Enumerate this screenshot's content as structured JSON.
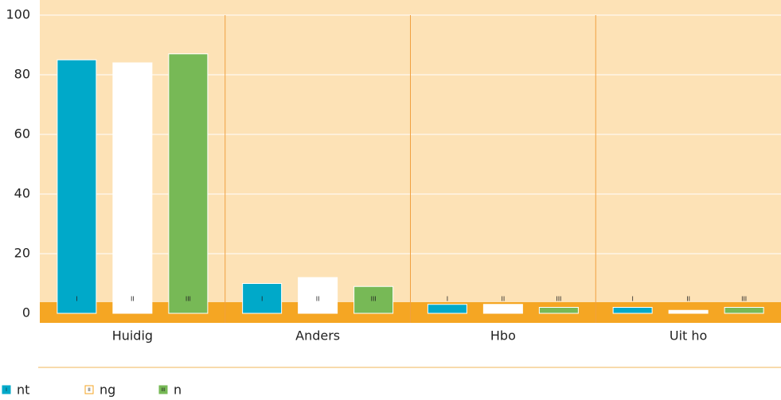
{
  "chart_data": {
    "type": "bar",
    "categories": [
      "Huidig",
      "Anders",
      "Hbo",
      "Uit ho"
    ],
    "series": [
      {
        "name": "nt",
        "marker": "I",
        "color": "#00a9c9",
        "values": [
          85,
          10,
          3,
          2
        ]
      },
      {
        "name": "ng",
        "marker": "II",
        "color": "#ffffff",
        "values": [
          84,
          12,
          3,
          1
        ]
      },
      {
        "name": "n",
        "marker": "III",
        "color": "#77b956",
        "values": [
          87,
          9,
          2,
          2
        ]
      }
    ],
    "ylim": [
      0,
      100
    ],
    "yticks": [
      0,
      20,
      40,
      60,
      80,
      100
    ],
    "grid": true
  }
}
